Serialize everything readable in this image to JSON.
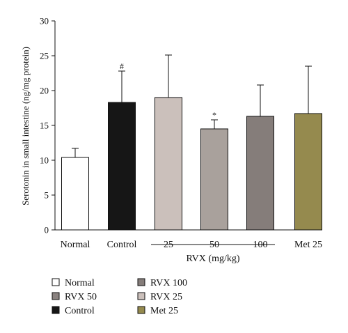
{
  "chart_data": {
    "type": "bar",
    "ylabel": "Serotonin in small intestine (ng/mg protein)",
    "ylim": [
      0,
      30
    ],
    "yticks": [
      0,
      5,
      10,
      15,
      20,
      25,
      30
    ],
    "categories": [
      "Normal",
      "Control",
      "25",
      "50",
      "100",
      "Met 25"
    ],
    "values": [
      10.4,
      18.3,
      19.0,
      14.5,
      16.3,
      16.7
    ],
    "errors": [
      1.3,
      4.5,
      6.1,
      1.3,
      4.5,
      6.8
    ],
    "colors": [
      "#ffffff",
      "#161616",
      "#cbc0bb",
      "#a9a19c",
      "#857d7a",
      "#958a4e"
    ],
    "annotations": [
      "",
      "#",
      "",
      "*",
      "",
      ""
    ],
    "group_label": "RVX (mg/kg)",
    "legend": [
      {
        "label": "Normal",
        "color": "#ffffff"
      },
      {
        "label": "RVX 50",
        "color": "#8a8280"
      },
      {
        "label": "Control",
        "color": "#161616"
      },
      {
        "label": "RVX 100",
        "color": "#857d7a"
      },
      {
        "label": "RVX 25",
        "color": "#cbc0bb"
      },
      {
        "label": "Met 25",
        "color": "#958a4e"
      }
    ],
    "grid": false
  }
}
